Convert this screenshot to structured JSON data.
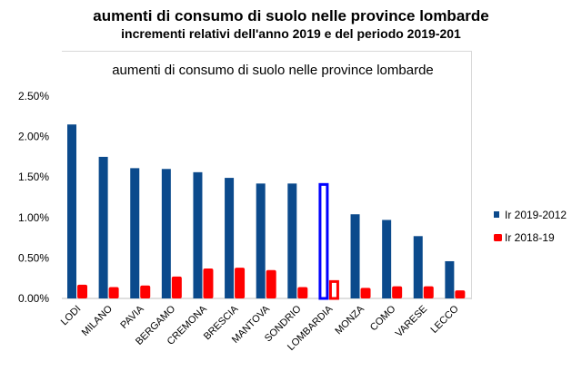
{
  "header": {
    "title": "aumenti di consumo di suolo nelle province lombarde",
    "subtitle": "incrementi relativi dell'anno 2019 e del periodo 2019-201"
  },
  "chart_data": {
    "type": "bar",
    "title": "aumenti di consumo di suolo nelle province lombarde",
    "xlabel": "",
    "ylabel": "",
    "ylim": [
      0,
      2.5
    ],
    "yticks": [
      "0.00%",
      "0.50%",
      "1.00%",
      "1.50%",
      "2.00%",
      "2.50%"
    ],
    "grid": false,
    "legend": "right",
    "categories": [
      "LODI",
      "MILANO",
      "PAVIA",
      "BERGAMO",
      "CREMONA",
      "BRESCIA",
      "MANTOVA",
      "SONDRIO",
      "LOMBARDIA",
      "MONZA",
      "COMO",
      "VARESE",
      "LECCO"
    ],
    "highlight_category": "LOMBARDIA",
    "series": [
      {
        "name": "Ir 2019-2012",
        "color": "#0b4a8c",
        "values": [
          2.15,
          1.75,
          1.61,
          1.6,
          1.56,
          1.49,
          1.42,
          1.42,
          1.42,
          1.04,
          0.97,
          0.77,
          0.46
        ]
      },
      {
        "name": "Ir 2018-19",
        "color": "#ff0000",
        "values": [
          0.17,
          0.14,
          0.16,
          0.27,
          0.37,
          0.38,
          0.35,
          0.14,
          0.22,
          0.13,
          0.15,
          0.15,
          0.1
        ]
      }
    ],
    "highlight_colors": {
      "Ir 2019-2012": "#0000ff",
      "Ir 2018-19": "#ff0000"
    }
  }
}
